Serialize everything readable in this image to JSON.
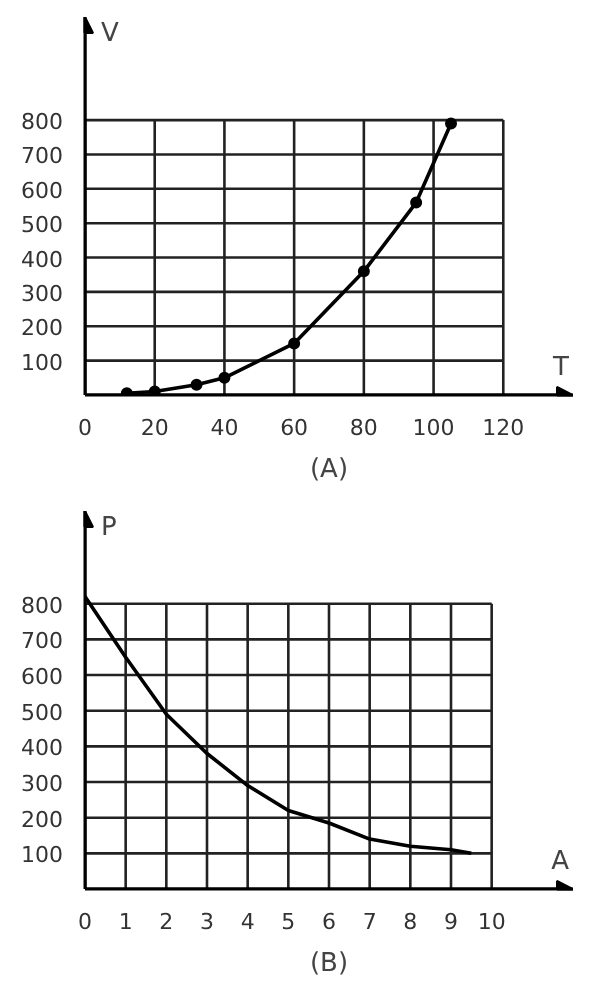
{
  "chart_data": [
    {
      "type": "line",
      "xlabel": "T",
      "ylabel": "V",
      "annotations": [
        "(A)"
      ],
      "xlim": [
        0,
        140
      ],
      "ylim": [
        0,
        1100
      ],
      "xticks": [
        0,
        20,
        40,
        60,
        80,
        100,
        120
      ],
      "yticks": [
        100,
        200,
        300,
        400,
        500,
        600,
        700,
        800
      ],
      "grid": true,
      "marker": "circle",
      "line_style": "solid",
      "series": [
        {
          "color": "#000000",
          "x": [
            12,
            20,
            32,
            40,
            60,
            80,
            95,
            105
          ],
          "values": [
            5,
            10,
            30,
            50,
            150,
            360,
            560,
            790
          ]
        }
      ]
    },
    {
      "type": "line",
      "xlabel": "A",
      "ylabel": "P",
      "annotations": [
        "(B)"
      ],
      "xlim": [
        0,
        12
      ],
      "ylim": [
        0,
        1060
      ],
      "xticks": [
        0,
        1,
        2,
        3,
        4,
        5,
        6,
        7,
        8,
        9,
        10
      ],
      "yticks": [
        100,
        200,
        300,
        400,
        500,
        600,
        700,
        800
      ],
      "grid": true,
      "marker": "none",
      "line_style": "solid",
      "series": [
        {
          "color": "#000000",
          "x": [
            0,
            1,
            2,
            3,
            4,
            5,
            6,
            7,
            8,
            9,
            9.5
          ],
          "values": [
            820,
            650,
            490,
            380,
            290,
            220,
            185,
            140,
            120,
            110,
            100
          ]
        }
      ]
    }
  ]
}
